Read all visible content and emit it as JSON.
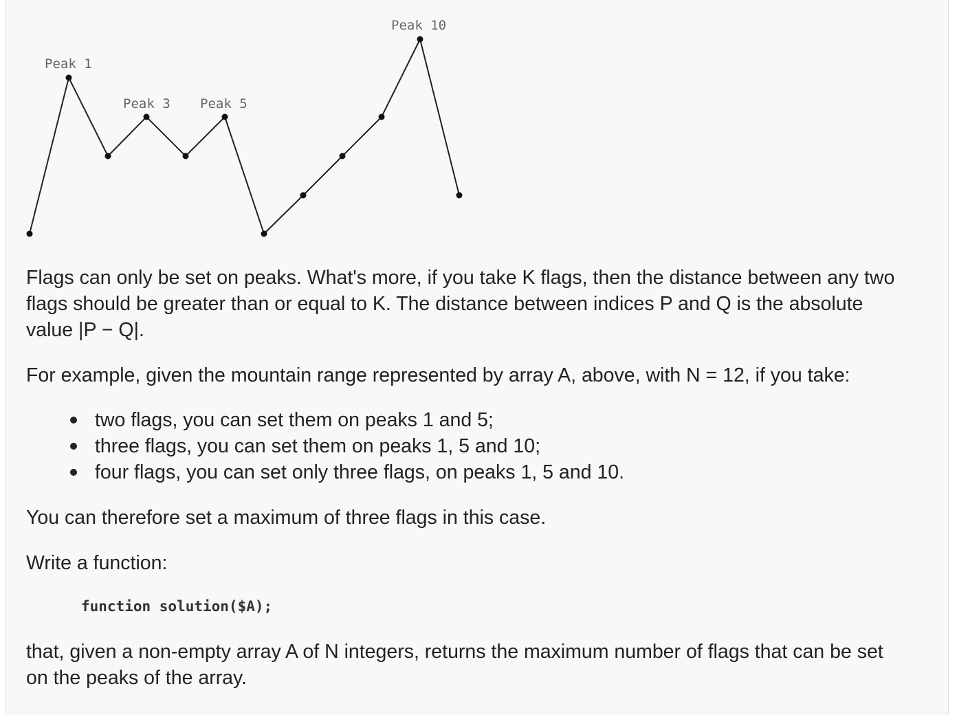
{
  "figure": {
    "labels": {
      "peak1": "Peak 1",
      "peak3": "Peak 3",
      "peak5": "Peak 5",
      "peak10": "Peak 10"
    }
  },
  "content": {
    "para1_line1": "Flags can only be set on peaks. What's more, if you take K flags, then the distance between any two",
    "para1_line2": "flags should be greater than or equal to K. The distance between indices P and Q is the absolute",
    "para1_line3": "value |P − Q|.",
    "para2": "For example, given the mountain range represented by array A, above, with N = 12, if you take:",
    "bullets": [
      "two flags, you can set them on peaks 1 and 5;",
      "three flags, you can set them on peaks 1, 5 and 10;",
      "four flags, you can set only three flags, on peaks 1, 5 and 10."
    ],
    "para3": "You can therefore set a maximum of three flags in this case.",
    "para4": "Write a function:",
    "code": "function solution($A);",
    "para5_line1": "that, given a non-empty array A of N integers, returns the maximum number of flags that can be set",
    "para5_line2": "on the peaks of the array."
  }
}
